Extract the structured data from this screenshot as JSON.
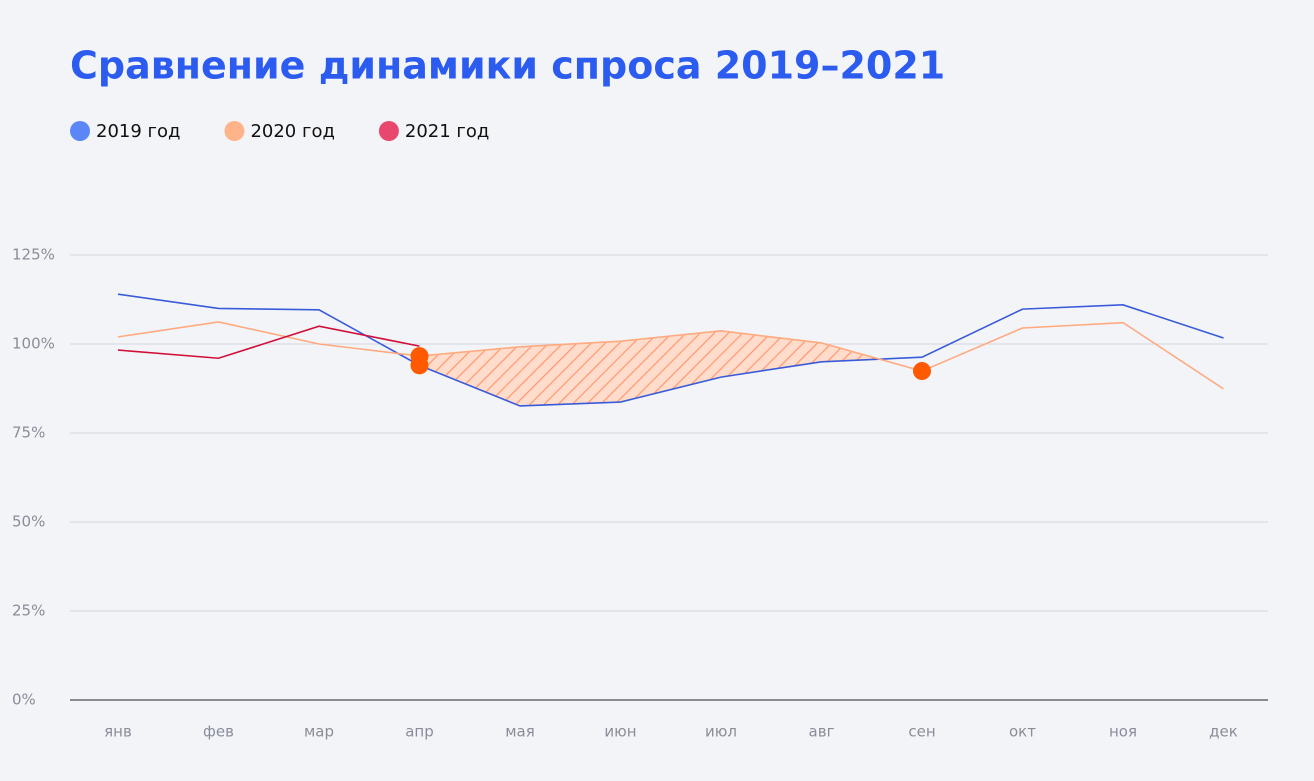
{
  "chart_data": {
    "type": "line",
    "title": "Сравнение динамики спроса 2019–2021",
    "categories": [
      "янв",
      "фев",
      "мар",
      "апр",
      "мая",
      "июн",
      "июл",
      "авг",
      "сен",
      "окт",
      "ноя",
      "дек"
    ],
    "series": [
      {
        "name": "2019 год",
        "color": "#3a5bd9",
        "legend_color": "#5b86f7",
        "values": [
          114,
          110,
          109.6,
          94,
          82.6,
          83.7,
          90.7,
          95,
          96.3,
          109.8,
          111,
          101.7
        ]
      },
      {
        "name": "2020 год",
        "color": "#ffaa80",
        "legend_color": "#ffb38a",
        "values": [
          102,
          106.2,
          100,
          96.6,
          99.2,
          100.8,
          103.7,
          100.3,
          92.4,
          104.5,
          106,
          87.4
        ]
      },
      {
        "name": "2021 год",
        "color": "#d0103a",
        "legend_color": "#e8486e",
        "values": [
          98.3,
          96,
          105,
          99.4,
          null,
          null,
          null,
          null,
          null,
          null,
          null,
          null
        ]
      }
    ],
    "highlight": {
      "from": "апр",
      "to": "сен",
      "color": "#ff5a00"
    },
    "ylim": [
      0,
      125
    ],
    "yticks": [
      {
        "value": 0,
        "label": "0%"
      },
      {
        "value": 25,
        "label": "25%"
      },
      {
        "value": 50,
        "label": "50%"
      },
      {
        "value": 75,
        "label": "75%"
      },
      {
        "value": 100,
        "label": "100%"
      },
      {
        "value": 125,
        "label": "125%"
      }
    ],
    "grid": true
  }
}
